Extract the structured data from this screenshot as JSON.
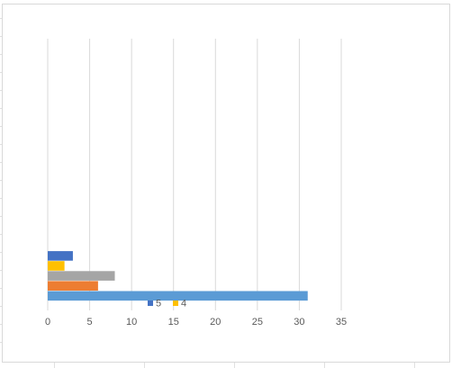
{
  "chart_data": {
    "type": "barh",
    "series": [
      {
        "color": "#5b9bd5",
        "values": [
          31
        ]
      },
      {
        "color": "#ed7d31",
        "values": [
          6
        ]
      },
      {
        "color": "#a5a5a5",
        "values": [
          8
        ]
      },
      {
        "name": "4",
        "color": "#ffc000",
        "values": [
          2
        ]
      },
      {
        "name": "5",
        "color": "#4472c4",
        "values": [
          3
        ]
      }
    ],
    "xlim": [
      0,
      35
    ],
    "xticks": [
      0,
      5,
      10,
      15,
      20,
      25,
      30,
      35
    ],
    "grid": true
  }
}
